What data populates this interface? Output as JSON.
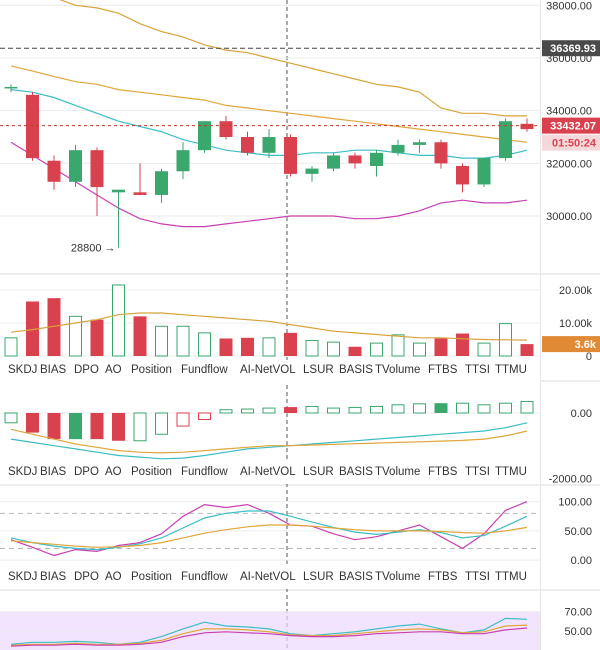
{
  "tabs": [
    "SKDJ",
    "BIAS",
    "DPO",
    "AO",
    "Position",
    "Fundflow",
    "AI-NetVOL",
    "LSUR",
    "BASIS",
    "TVolume",
    "FTBS",
    "TTSI",
    "TTMU"
  ],
  "colors": {
    "up": "#3aa76d",
    "down": "#d9414f",
    "bb_upper": "#d8a33a",
    "bb_lower": "#c83fb4",
    "ma_fast": "#3bbdc4",
    "ma_slow": "#e0a63a",
    "vol_ma": "#d8a33a",
    "grid": "#ececec",
    "last_badge": "#e08a35",
    "label_badge": "#4a4a4a",
    "osc_purple": "#c83fb4",
    "osc_band": "#ecd9ff"
  },
  "chart_data": [
    {
      "type": "candlestick",
      "name": "price",
      "y_ticks": [
        "38000.00",
        "36000.00",
        "34000.00",
        "32000.00",
        "30000.00"
      ],
      "y_tick_values": [
        38000,
        36000,
        34000,
        32000,
        30000
      ],
      "ylim": [
        27800,
        38200
      ],
      "candles": [
        {
          "o": 34900,
          "h": 35000,
          "l": 34700,
          "c": 34900
        },
        {
          "o": 34600,
          "h": 34700,
          "l": 32100,
          "c": 32200
        },
        {
          "o": 32100,
          "h": 32300,
          "l": 31000,
          "c": 31300
        },
        {
          "o": 31300,
          "h": 32700,
          "l": 31100,
          "c": 32500
        },
        {
          "o": 32500,
          "h": 32600,
          "l": 30000,
          "c": 31100
        },
        {
          "o": 30900,
          "h": 31000,
          "l": 28800,
          "c": 31000
        },
        {
          "o": 30900,
          "h": 32000,
          "l": 30800,
          "c": 30800
        },
        {
          "o": 30800,
          "h": 31800,
          "l": 30500,
          "c": 31700
        },
        {
          "o": 31700,
          "h": 32800,
          "l": 31400,
          "c": 32500
        },
        {
          "o": 32500,
          "h": 33600,
          "l": 32400,
          "c": 33600
        },
        {
          "o": 33600,
          "h": 33800,
          "l": 32900,
          "c": 33000
        },
        {
          "o": 33000,
          "h": 33200,
          "l": 32300,
          "c": 32400
        },
        {
          "o": 32400,
          "h": 33300,
          "l": 32200,
          "c": 33000
        },
        {
          "o": 33000,
          "h": 33100,
          "l": 31500,
          "c": 31600
        },
        {
          "o": 31600,
          "h": 31900,
          "l": 31300,
          "c": 31800
        },
        {
          "o": 31800,
          "h": 32400,
          "l": 31700,
          "c": 32300
        },
        {
          "o": 32300,
          "h": 32400,
          "l": 31800,
          "c": 32000
        },
        {
          "o": 31900,
          "h": 32500,
          "l": 31500,
          "c": 32400
        },
        {
          "o": 32400,
          "h": 32900,
          "l": 32300,
          "c": 32700
        },
        {
          "o": 32700,
          "h": 32900,
          "l": 32400,
          "c": 32800
        },
        {
          "o": 32800,
          "h": 32900,
          "l": 31800,
          "c": 32000
        },
        {
          "o": 31900,
          "h": 32000,
          "l": 30900,
          "c": 31200
        },
        {
          "o": 31200,
          "h": 32200,
          "l": 31100,
          "c": 32200
        },
        {
          "o": 32200,
          "h": 33700,
          "l": 32100,
          "c": 33600
        },
        {
          "o": 33500,
          "h": 33700,
          "l": 33200,
          "c": 33300
        }
      ],
      "bb_upper": [
        39200,
        38600,
        38300,
        38000,
        37900,
        37700,
        37300,
        37000,
        36800,
        36500,
        36300,
        36200,
        36000,
        35800,
        35600,
        35400,
        35200,
        35000,
        34900,
        34700,
        34100,
        33900,
        33900,
        33800,
        33800
      ],
      "bb_lower": [
        32800,
        32300,
        31800,
        31300,
        30800,
        30300,
        29900,
        29700,
        29600,
        29600,
        29700,
        29800,
        29900,
        30000,
        30000,
        30000,
        29900,
        29900,
        30000,
        30200,
        30500,
        30600,
        30500,
        30500,
        30600
      ],
      "ma_fast": [
        34800,
        34700,
        34500,
        34200,
        33900,
        33600,
        33400,
        33200,
        32900,
        32700,
        32500,
        32400,
        32300,
        32300,
        32400,
        32400,
        32500,
        32500,
        32400,
        32300,
        32300,
        32200,
        32200,
        32300,
        32500
      ],
      "ma_slow": [
        35700,
        35500,
        35300,
        35100,
        35000,
        34800,
        34700,
        34600,
        34500,
        34400,
        34200,
        34100,
        34000,
        33900,
        33800,
        33700,
        33600,
        33500,
        33400,
        33300,
        33200,
        33100,
        33000,
        32900,
        32800
      ],
      "h_lines": [
        {
          "value": 36369.93,
          "label": "36369.93",
          "style": "dashed-dark"
        },
        {
          "value": 33432.07,
          "label": "33432.07",
          "style": "dashed-red"
        }
      ],
      "countdown": "01:50:24",
      "annotation": {
        "label": "28800",
        "candle": 5
      }
    },
    {
      "type": "bar",
      "name": "volume",
      "y_ticks": [
        "20.00k",
        "10.00k",
        "0"
      ],
      "y_tick_values": [
        20000,
        10000,
        0
      ],
      "ylim": [
        0,
        23000
      ],
      "values": [
        5500,
        16500,
        17500,
        12000,
        11000,
        21500,
        12000,
        9000,
        9000,
        7000,
        5300,
        5500,
        5500,
        7000,
        4700,
        4200,
        2800,
        3900,
        6400,
        3900,
        5300,
        6800,
        3900,
        9800,
        3600
      ],
      "directions": [
        "up",
        "down",
        "down",
        "up",
        "down",
        "up",
        "down",
        "up",
        "up",
        "up",
        "down",
        "down",
        "up",
        "down",
        "up",
        "up",
        "down",
        "up",
        "up",
        "up",
        "down",
        "down",
        "up",
        "up",
        "down"
      ],
      "ma": [
        7200,
        8000,
        9000,
        10000,
        11000,
        12500,
        13000,
        13000,
        12500,
        12000,
        11500,
        11000,
        10500,
        9500,
        8500,
        7500,
        7000,
        6500,
        6000,
        5500,
        5500,
        5200,
        5000,
        4900,
        4800
      ],
      "last_label": "3.6k"
    },
    {
      "type": "bar",
      "name": "oscillator",
      "y_ticks": [
        "0.00",
        "-2000.00"
      ],
      "y_tick_values": [
        0,
        -2000
      ],
      "ylim": [
        -2050,
        550
      ],
      "values": [
        -300,
        -600,
        -800,
        -800,
        -800,
        -850,
        -850,
        -650,
        -400,
        -200,
        100,
        120,
        150,
        180,
        200,
        150,
        170,
        200,
        250,
        280,
        300,
        300,
        250,
        300,
        350
      ],
      "directions": [
        "up",
        "down",
        "down",
        "up",
        "down",
        "down",
        "up",
        "up",
        "down",
        "down",
        "up",
        "up",
        "up",
        "down",
        "up",
        "up",
        "up",
        "up",
        "up",
        "up",
        "up",
        "up",
        "up",
        "up",
        "up"
      ],
      "line_a": [
        -800,
        -900,
        -1000,
        -1100,
        -1200,
        -1300,
        -1350,
        -1400,
        -1380,
        -1300,
        -1200,
        -1100,
        -1050,
        -1000,
        -950,
        -900,
        -850,
        -800,
        -750,
        -700,
        -650,
        -600,
        -550,
        -450,
        -300
      ],
      "line_b": [
        -500,
        -650,
        -800,
        -950,
        -1050,
        -1150,
        -1200,
        -1220,
        -1200,
        -1150,
        -1100,
        -1050,
        -1000,
        -1000,
        -980,
        -960,
        -940,
        -920,
        -900,
        -880,
        -860,
        -840,
        -800,
        -700,
        -550
      ]
    },
    {
      "type": "line",
      "name": "skdj",
      "y_ticks": [
        "100.00",
        "50.00",
        "0.00"
      ],
      "y_tick_values": [
        100,
        50,
        0
      ],
      "ylim": [
        -10,
        125
      ],
      "series": [
        {
          "values": [
            35,
            22,
            8,
            18,
            15,
            25,
            30,
            45,
            75,
            95,
            90,
            95,
            80,
            60,
            58,
            45,
            35,
            40,
            50,
            60,
            40,
            20,
            45,
            85,
            100
          ],
          "color": "#c83fb4"
        },
        {
          "values": [
            38,
            30,
            24,
            20,
            18,
            22,
            28,
            38,
            55,
            72,
            80,
            84,
            84,
            75,
            65,
            56,
            48,
            44,
            48,
            52,
            47,
            38,
            42,
            58,
            75
          ],
          "color": "#3bbdc4"
        },
        {
          "values": [
            33,
            30,
            27,
            24,
            22,
            23,
            25,
            30,
            38,
            46,
            52,
            57,
            60,
            60,
            58,
            55,
            52,
            50,
            50,
            50,
            49,
            47,
            46,
            50,
            56
          ],
          "color": "#e0a63a"
        }
      ],
      "ref_lines": [
        80,
        20
      ]
    },
    {
      "type": "line",
      "name": "tsi",
      "y_ticks": [
        "70.00",
        "50.00"
      ],
      "y_tick_values": [
        70,
        50
      ],
      "ylim": [
        30,
        78
      ],
      "band": [
        30,
        70
      ],
      "series": [
        {
          "values": [
            36,
            38,
            38,
            39,
            38,
            36,
            38,
            44,
            52,
            59,
            55,
            54,
            52,
            47,
            45,
            47,
            49,
            52,
            55,
            57,
            52,
            48,
            51,
            63,
            62
          ],
          "color": "#3bbdc4"
        },
        {
          "values": [
            35,
            36,
            36,
            37,
            36,
            36,
            37,
            40,
            47,
            52,
            52,
            51,
            49,
            46,
            45,
            45,
            47,
            49,
            51,
            52,
            51,
            48,
            49,
            55,
            56
          ],
          "color": "#e0a63a"
        },
        {
          "values": [
            34,
            35,
            35,
            36,
            35,
            35,
            36,
            38,
            44,
            48,
            49,
            48,
            47,
            45,
            44,
            44,
            45,
            47,
            48,
            49,
            49,
            47,
            47,
            51,
            53
          ],
          "color": "#c83fb4"
        }
      ]
    }
  ]
}
